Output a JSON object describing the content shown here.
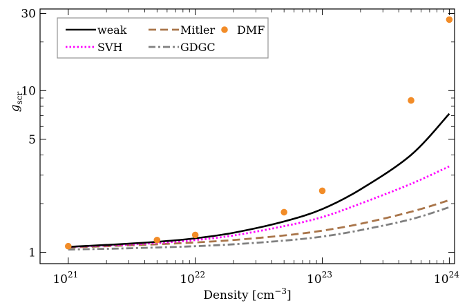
{
  "chart_data": {
    "type": "line",
    "xlabel": "Density [cm",
    "xlabel_exp": "−3",
    "xlabel_close": "]",
    "ylabel_main": "g",
    "ylabel_sub": "scr",
    "x_scale": "log",
    "y_scale": "log",
    "xlim": [
      6e+20,
      1.1e+24
    ],
    "ylim": [
      0.85,
      32
    ],
    "x_ticks": [
      {
        "value": 1e+21,
        "base": "10",
        "exp": "21"
      },
      {
        "value": 1e+22,
        "base": "10",
        "exp": "22"
      },
      {
        "value": 1e+23,
        "base": "10",
        "exp": "23"
      },
      {
        "value": 1e+24,
        "base": "10",
        "exp": "24"
      }
    ],
    "y_ticks": [
      {
        "value": 1,
        "label": "1"
      },
      {
        "value": 5,
        "label": "5"
      },
      {
        "value": 10,
        "label": "10"
      },
      {
        "value": 30,
        "label": "30"
      }
    ],
    "y_minor_ticks": [
      2,
      3,
      4,
      6,
      7,
      8,
      9,
      20
    ],
    "legend_position": "top-left",
    "grid": false,
    "series": [
      {
        "name": "weak",
        "style": "solid",
        "color": "#000000",
        "x": [
          1e+21,
          2e+21,
          5e+21,
          1e+22,
          2e+22,
          5e+22,
          1e+23,
          2e+23,
          5e+23,
          1e+24
        ],
        "y": [
          1.08,
          1.11,
          1.16,
          1.22,
          1.32,
          1.55,
          1.85,
          2.45,
          4.0,
          7.2
        ]
      },
      {
        "name": "Mitler",
        "style": "dashed",
        "color": "#a9754a",
        "x": [
          1e+21,
          2e+21,
          5e+21,
          1e+22,
          2e+22,
          5e+22,
          1e+23,
          2e+23,
          5e+23,
          1e+24
        ],
        "y": [
          1.07,
          1.09,
          1.12,
          1.15,
          1.19,
          1.27,
          1.36,
          1.5,
          1.78,
          2.1
        ]
      },
      {
        "name": "SVH",
        "style": "dotted",
        "color": "#ff00ff",
        "x": [
          1e+21,
          2e+21,
          5e+21,
          1e+22,
          2e+22,
          5e+22,
          1e+23,
          2e+23,
          5e+23,
          1e+24
        ],
        "y": [
          1.08,
          1.1,
          1.14,
          1.19,
          1.27,
          1.45,
          1.65,
          2.0,
          2.65,
          3.4
        ]
      },
      {
        "name": "GDGC",
        "style": "dashdot",
        "color": "#808080",
        "x": [
          1e+21,
          2e+21,
          5e+21,
          1e+22,
          2e+22,
          5e+22,
          1e+23,
          2e+23,
          5e+23,
          1e+24
        ],
        "y": [
          1.04,
          1.05,
          1.07,
          1.09,
          1.12,
          1.18,
          1.25,
          1.37,
          1.6,
          1.9
        ]
      },
      {
        "name": "DMF",
        "style": "points",
        "color": "#f28c28",
        "x": [
          1e+21,
          5e+21,
          1e+22,
          5e+22,
          1e+23,
          5e+23,
          1e+24
        ],
        "y": [
          1.09,
          1.19,
          1.28,
          1.77,
          2.4,
          8.7,
          27.5
        ]
      }
    ]
  }
}
